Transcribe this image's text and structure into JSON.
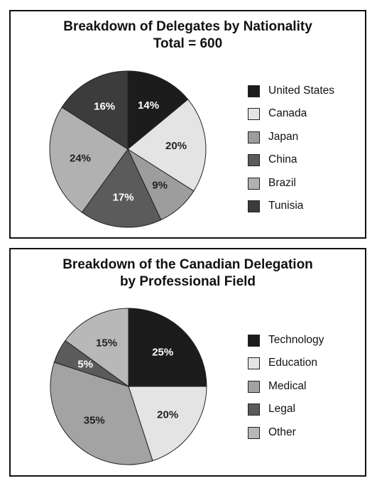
{
  "chart_data": [
    {
      "type": "pie",
      "title": "Breakdown of Delegates by Nationality",
      "subtitle": "Total = 600",
      "categories": [
        "United States",
        "Canada",
        "Japan",
        "China",
        "Brazil",
        "Tunisia"
      ],
      "values": [
        14,
        20,
        9,
        17,
        24,
        16
      ],
      "labels": [
        "14%",
        "20%",
        "9%",
        "17%",
        "24%",
        "16%"
      ],
      "colors": [
        "#1c1c1c",
        "#e4e4e4",
        "#9d9d9d",
        "#5b5b5b",
        "#b1b1b1",
        "#3c3c3c"
      ],
      "label_colors": [
        "#ffffff",
        "#222222",
        "#222222",
        "#ffffff",
        "#222222",
        "#ffffff"
      ],
      "legend_position": "right"
    },
    {
      "type": "pie",
      "title": "Breakdown of the Canadian Delegation",
      "subtitle": "by Professional Field",
      "categories": [
        "Technology",
        "Education",
        "Medical",
        "Legal",
        "Other"
      ],
      "values": [
        25,
        20,
        35,
        5,
        15
      ],
      "labels": [
        "25%",
        "20%",
        "35%",
        "5%",
        "15%"
      ],
      "colors": [
        "#1c1c1c",
        "#e4e4e4",
        "#a3a3a3",
        "#5b5b5b",
        "#b8b8b8"
      ],
      "label_colors": [
        "#ffffff",
        "#222222",
        "#222222",
        "#ffffff",
        "#222222"
      ],
      "legend_position": "right"
    }
  ]
}
